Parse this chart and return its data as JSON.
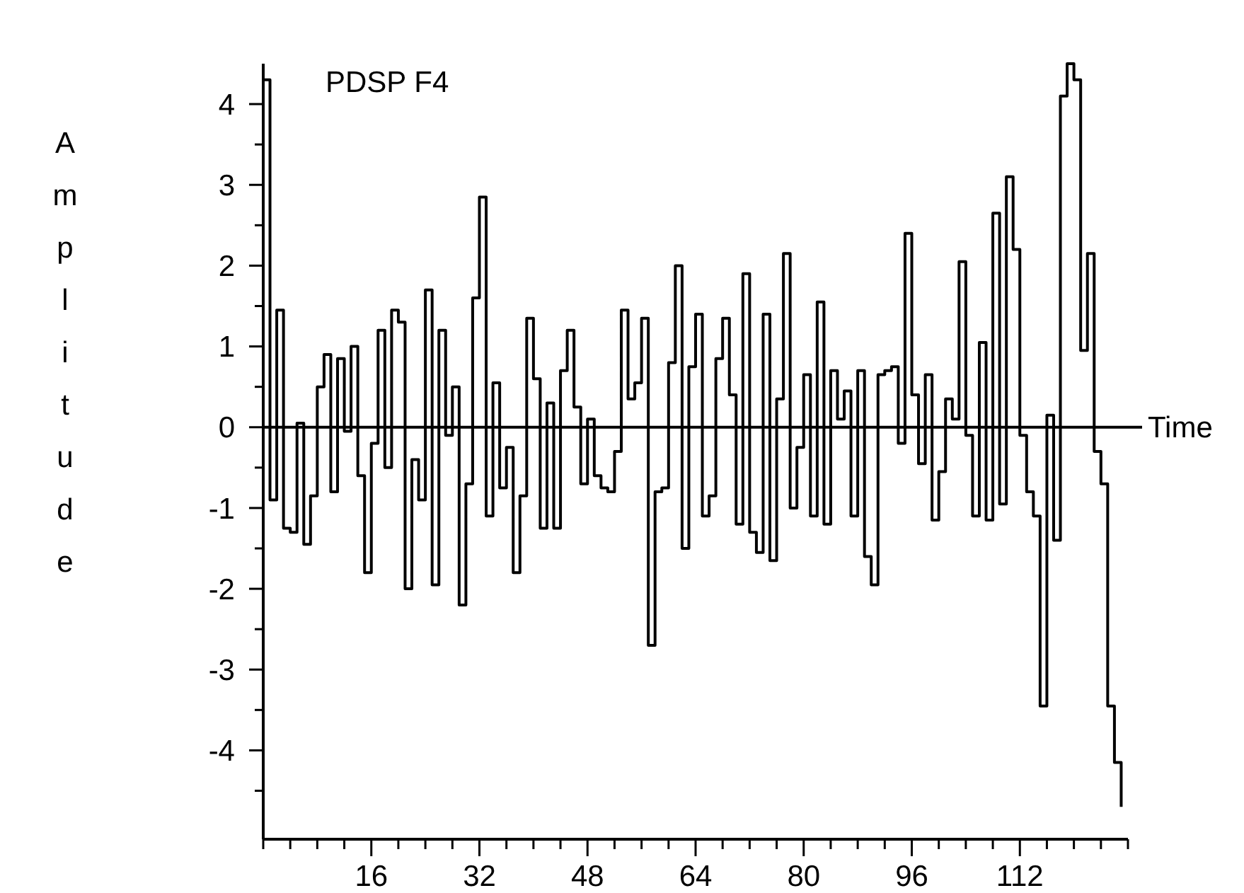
{
  "chart_data": {
    "type": "step",
    "title": "PDSP F4",
    "ylabel": "Amplitude",
    "x": [
      0,
      1,
      2,
      3,
      4,
      5,
      6,
      7,
      8,
      9,
      10,
      11,
      12,
      13,
      14,
      15,
      16,
      17,
      18,
      19,
      20,
      21,
      22,
      23,
      24,
      25,
      26,
      27,
      28,
      29,
      30,
      31,
      32,
      33,
      34,
      35,
      36,
      37,
      38,
      39,
      40,
      41,
      42,
      43,
      44,
      45,
      46,
      47,
      48,
      49,
      50,
      51,
      52,
      53,
      54,
      55,
      56,
      57,
      58,
      59,
      60,
      61,
      62,
      63,
      64,
      65,
      66,
      67,
      68,
      69,
      70,
      71,
      72,
      73,
      74,
      75,
      76,
      77,
      78,
      79,
      80,
      81,
      82,
      83,
      84,
      85,
      86,
      87,
      88,
      89,
      90,
      91,
      92,
      93,
      94,
      95,
      96,
      97,
      98,
      99,
      100,
      101,
      102,
      103,
      104,
      105,
      106,
      107,
      108,
      109,
      110,
      111,
      112,
      113,
      114,
      115,
      116,
      117,
      118,
      119,
      120,
      121,
      122,
      123,
      124,
      125,
      126,
      127
    ],
    "values": [
      4.3,
      -0.9,
      1.45,
      -1.25,
      -1.3,
      0.05,
      -1.45,
      -0.85,
      0.5,
      0.9,
      -0.8,
      0.85,
      -0.05,
      1.0,
      -0.6,
      -1.8,
      -0.2,
      1.2,
      -0.5,
      1.45,
      1.3,
      -2.0,
      -0.4,
      -0.9,
      1.7,
      -1.95,
      1.2,
      -0.1,
      0.5,
      -2.2,
      -0.7,
      1.6,
      2.85,
      -1.1,
      0.55,
      -0.75,
      -0.25,
      -1.8,
      -0.85,
      1.35,
      0.6,
      -1.25,
      0.3,
      -1.25,
      0.7,
      1.2,
      0.25,
      -0.7,
      0.1,
      -0.6,
      -0.75,
      -0.8,
      -0.3,
      1.45,
      0.35,
      0.55,
      1.35,
      -2.7,
      -0.8,
      -0.75,
      0.8,
      2.0,
      -1.5,
      0.75,
      1.4,
      -1.1,
      -0.85,
      0.85,
      1.35,
      0.4,
      -1.2,
      1.9,
      -1.3,
      -1.55,
      1.4,
      -1.65,
      0.35,
      2.15,
      -1.0,
      -0.25,
      0.65,
      -1.1,
      1.55,
      -1.2,
      0.7,
      0.1,
      0.45,
      -1.1,
      0.7,
      -1.6,
      -1.95,
      0.65,
      0.7,
      0.75,
      -0.2,
      2.4,
      0.4,
      -0.45,
      0.65,
      -1.15,
      -0.55,
      0.35,
      0.1,
      2.05,
      -0.1,
      -1.1,
      1.05,
      -1.15,
      2.65,
      -0.95,
      3.1,
      2.2,
      -0.1,
      -0.8,
      -1.1,
      -3.45,
      0.15,
      -1.4,
      4.1,
      4.5,
      4.3,
      0.95,
      2.15,
      -0.3,
      -0.7,
      -3.45,
      -4.15,
      -4.7
    ],
    "color": "#000000",
    "xlim": [
      0,
      128
    ],
    "xticks": [
      {
        "value": 0,
        "label": null
      },
      {
        "value": 4,
        "label": null
      },
      {
        "value": 8,
        "label": null
      },
      {
        "value": 12,
        "label": null
      },
      16,
      {
        "value": 20,
        "label": null
      },
      {
        "value": 24,
        "label": null
      },
      {
        "value": 28,
        "label": null
      },
      32,
      {
        "value": 36,
        "label": null
      },
      {
        "value": 40,
        "label": null
      },
      {
        "value": 44,
        "label": null
      },
      48,
      {
        "value": 52,
        "label": null
      },
      {
        "value": 56,
        "label": null
      },
      {
        "value": 60,
        "label": null
      },
      64,
      {
        "value": 68,
        "label": null
      },
      {
        "value": 72,
        "label": null
      },
      {
        "value": 76,
        "label": null
      },
      80,
      {
        "value": 84,
        "label": null
      },
      {
        "value": 88,
        "label": null
      },
      {
        "value": 92,
        "label": null
      },
      96,
      {
        "value": 100,
        "label": null
      },
      {
        "value": 104,
        "label": null
      },
      {
        "value": 108,
        "label": null
      },
      112,
      {
        "value": 116,
        "label": null
      },
      {
        "value": 120,
        "label": null
      },
      {
        "value": 124,
        "label": null
      },
      {
        "value": 128,
        "label": null
      }
    ],
    "ylim": [
      -5.1,
      4.5
    ],
    "yticks": [
      {
        "value": -4.5,
        "label": null
      },
      -4,
      {
        "value": -3.5,
        "label": null
      },
      -3,
      {
        "value": -2.5,
        "label": null
      },
      -2,
      {
        "value": -1.5,
        "label": null
      },
      -1,
      {
        "value": -0.5,
        "label": null
      },
      0,
      {
        "value": 0.5,
        "label": null
      },
      1,
      {
        "value": 1.5,
        "label": null
      },
      2,
      {
        "value": 2.5,
        "label": null
      },
      3,
      {
        "value": 3.5,
        "label": null
      },
      4
    ],
    "ref_lines": [
      {
        "axis": "y",
        "value": 0,
        "label": "Time"
      }
    ],
    "grid": false
  }
}
